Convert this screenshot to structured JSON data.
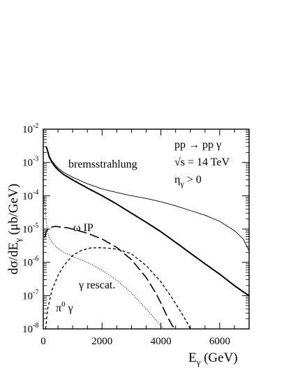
{
  "chart_data": {
    "type": "line",
    "xlabel_main": "E",
    "xlabel_sub": "γ",
    "xlabel_unit": "(GeV)",
    "ylabel_main": "dσ/dE",
    "ylabel_sub": "γ",
    "ylabel_unit": "(μb/GeV)",
    "xlim": [
      0,
      7000
    ],
    "ylim": [
      1e-08,
      0.01
    ],
    "yscale": "log",
    "grid": false,
    "legend": "none",
    "x_ticks": [
      {
        "value": 0,
        "label": "0"
      },
      {
        "value": 2000,
        "label": "2000"
      },
      {
        "value": 4000,
        "label": "4000"
      },
      {
        "value": 6000,
        "label": "6000"
      }
    ],
    "y_ticks": [
      {
        "value": 0.01,
        "base": "10",
        "exp": "-2"
      },
      {
        "value": 0.001,
        "base": "10",
        "exp": "-3"
      },
      {
        "value": 0.0001,
        "base": "10",
        "exp": "-4"
      },
      {
        "value": 1e-05,
        "base": "10",
        "exp": "-5"
      },
      {
        "value": 1e-06,
        "base": "10",
        "exp": "-6"
      },
      {
        "value": 1e-07,
        "base": "10",
        "exp": "-7"
      },
      {
        "value": 1e-08,
        "base": "10",
        "exp": "-8"
      }
    ],
    "process": {
      "line1": "pp → pp γ",
      "line2": "√s = 14 TeV",
      "line3_main": "η",
      "line3_sub": "γ",
      "line3_rest": " > 0"
    },
    "series": [
      {
        "name": "bremsstrahlung",
        "style": "thick-solid",
        "x": [
          100,
          150,
          200,
          300,
          400,
          500,
          700,
          1000,
          1500,
          2000,
          2500,
          3000,
          3500,
          4000,
          4500,
          5000,
          5500,
          6000,
          6500,
          6800,
          7000
        ],
        "y": [
          0.003,
          0.0022,
          0.0015,
          0.001,
          0.00075,
          0.0006,
          0.00043,
          0.0003,
          0.00017,
          0.0001,
          5.6e-05,
          3e-05,
          1.6e-05,
          8.3e-06,
          4e-06,
          1.9e-06,
          9e-07,
          4.4e-07,
          2e-07,
          1.3e-07,
          1e-07
        ]
      },
      {
        "name": "",
        "style": "thin-solid",
        "x": [
          100,
          150,
          200,
          300,
          400,
          500,
          700,
          1000,
          1500,
          2000,
          2500,
          3000,
          3500,
          4000,
          4500,
          5000,
          5500,
          6000,
          6500,
          6800,
          7000
        ],
        "y": [
          0.003,
          0.0022,
          0.0016,
          0.0011,
          0.00085,
          0.00068,
          0.0005,
          0.00036,
          0.00023,
          0.00016,
          0.000125,
          0.0001,
          8.3e-05,
          6.6e-05,
          5e-05,
          3.6e-05,
          2.6e-05,
          1.7e-05,
          9e-06,
          5e-06,
          2.2e-06
        ]
      },
      {
        "name": "ω IP",
        "style": "long-dash",
        "x": [
          50,
          100,
          200,
          400,
          600,
          800,
          1000,
          1500,
          2000,
          2500,
          3000,
          3500,
          3800,
          4000,
          4200,
          4400,
          4500
        ],
        "y": [
          5.5e-06,
          8.5e-06,
          1.1e-05,
          1.2e-05,
          1.15e-05,
          1.1e-05,
          1e-05,
          7.5e-06,
          5e-06,
          2.8e-06,
          1.2e-06,
          3.5e-07,
          1.3e-07,
          6e-08,
          2.5e-08,
          1.2e-08,
          1e-08
        ]
      },
      {
        "name": "γ rescat.",
        "style": "short-dash",
        "x": [
          80,
          150,
          300,
          500,
          700,
          1000,
          1300,
          1600,
          2000,
          2500,
          3000,
          3500,
          4000,
          4400,
          4700,
          4900,
          5000
        ],
        "y": [
          1e-08,
          4e-08,
          1.5e-07,
          4e-07,
          8e-07,
          1.6e-06,
          2.3e-06,
          2.7e-06,
          2.75e-06,
          2.5e-06,
          1.8e-06,
          8e-07,
          2.6e-07,
          8e-08,
          3e-08,
          1.5e-08,
          1e-08
        ]
      },
      {
        "name": "π",
        "name_sup": "0",
        "name_rest": "γ",
        "style": "dotted",
        "x": [
          20,
          60,
          100,
          150,
          200,
          300,
          500,
          700,
          1000,
          1500,
          2000,
          2500,
          3000,
          3500,
          3800,
          4000,
          4100
        ],
        "y": [
          0.0001,
          5e-05,
          1.7e-05,
          8e-06,
          5.5e-06,
          4e-06,
          2.6e-06,
          2e-06,
          1.5e-06,
          1e-06,
          5.8e-07,
          2.9e-07,
          1.2e-07,
          4e-08,
          2e-08,
          1.2e-08,
          1e-08
        ]
      }
    ]
  }
}
